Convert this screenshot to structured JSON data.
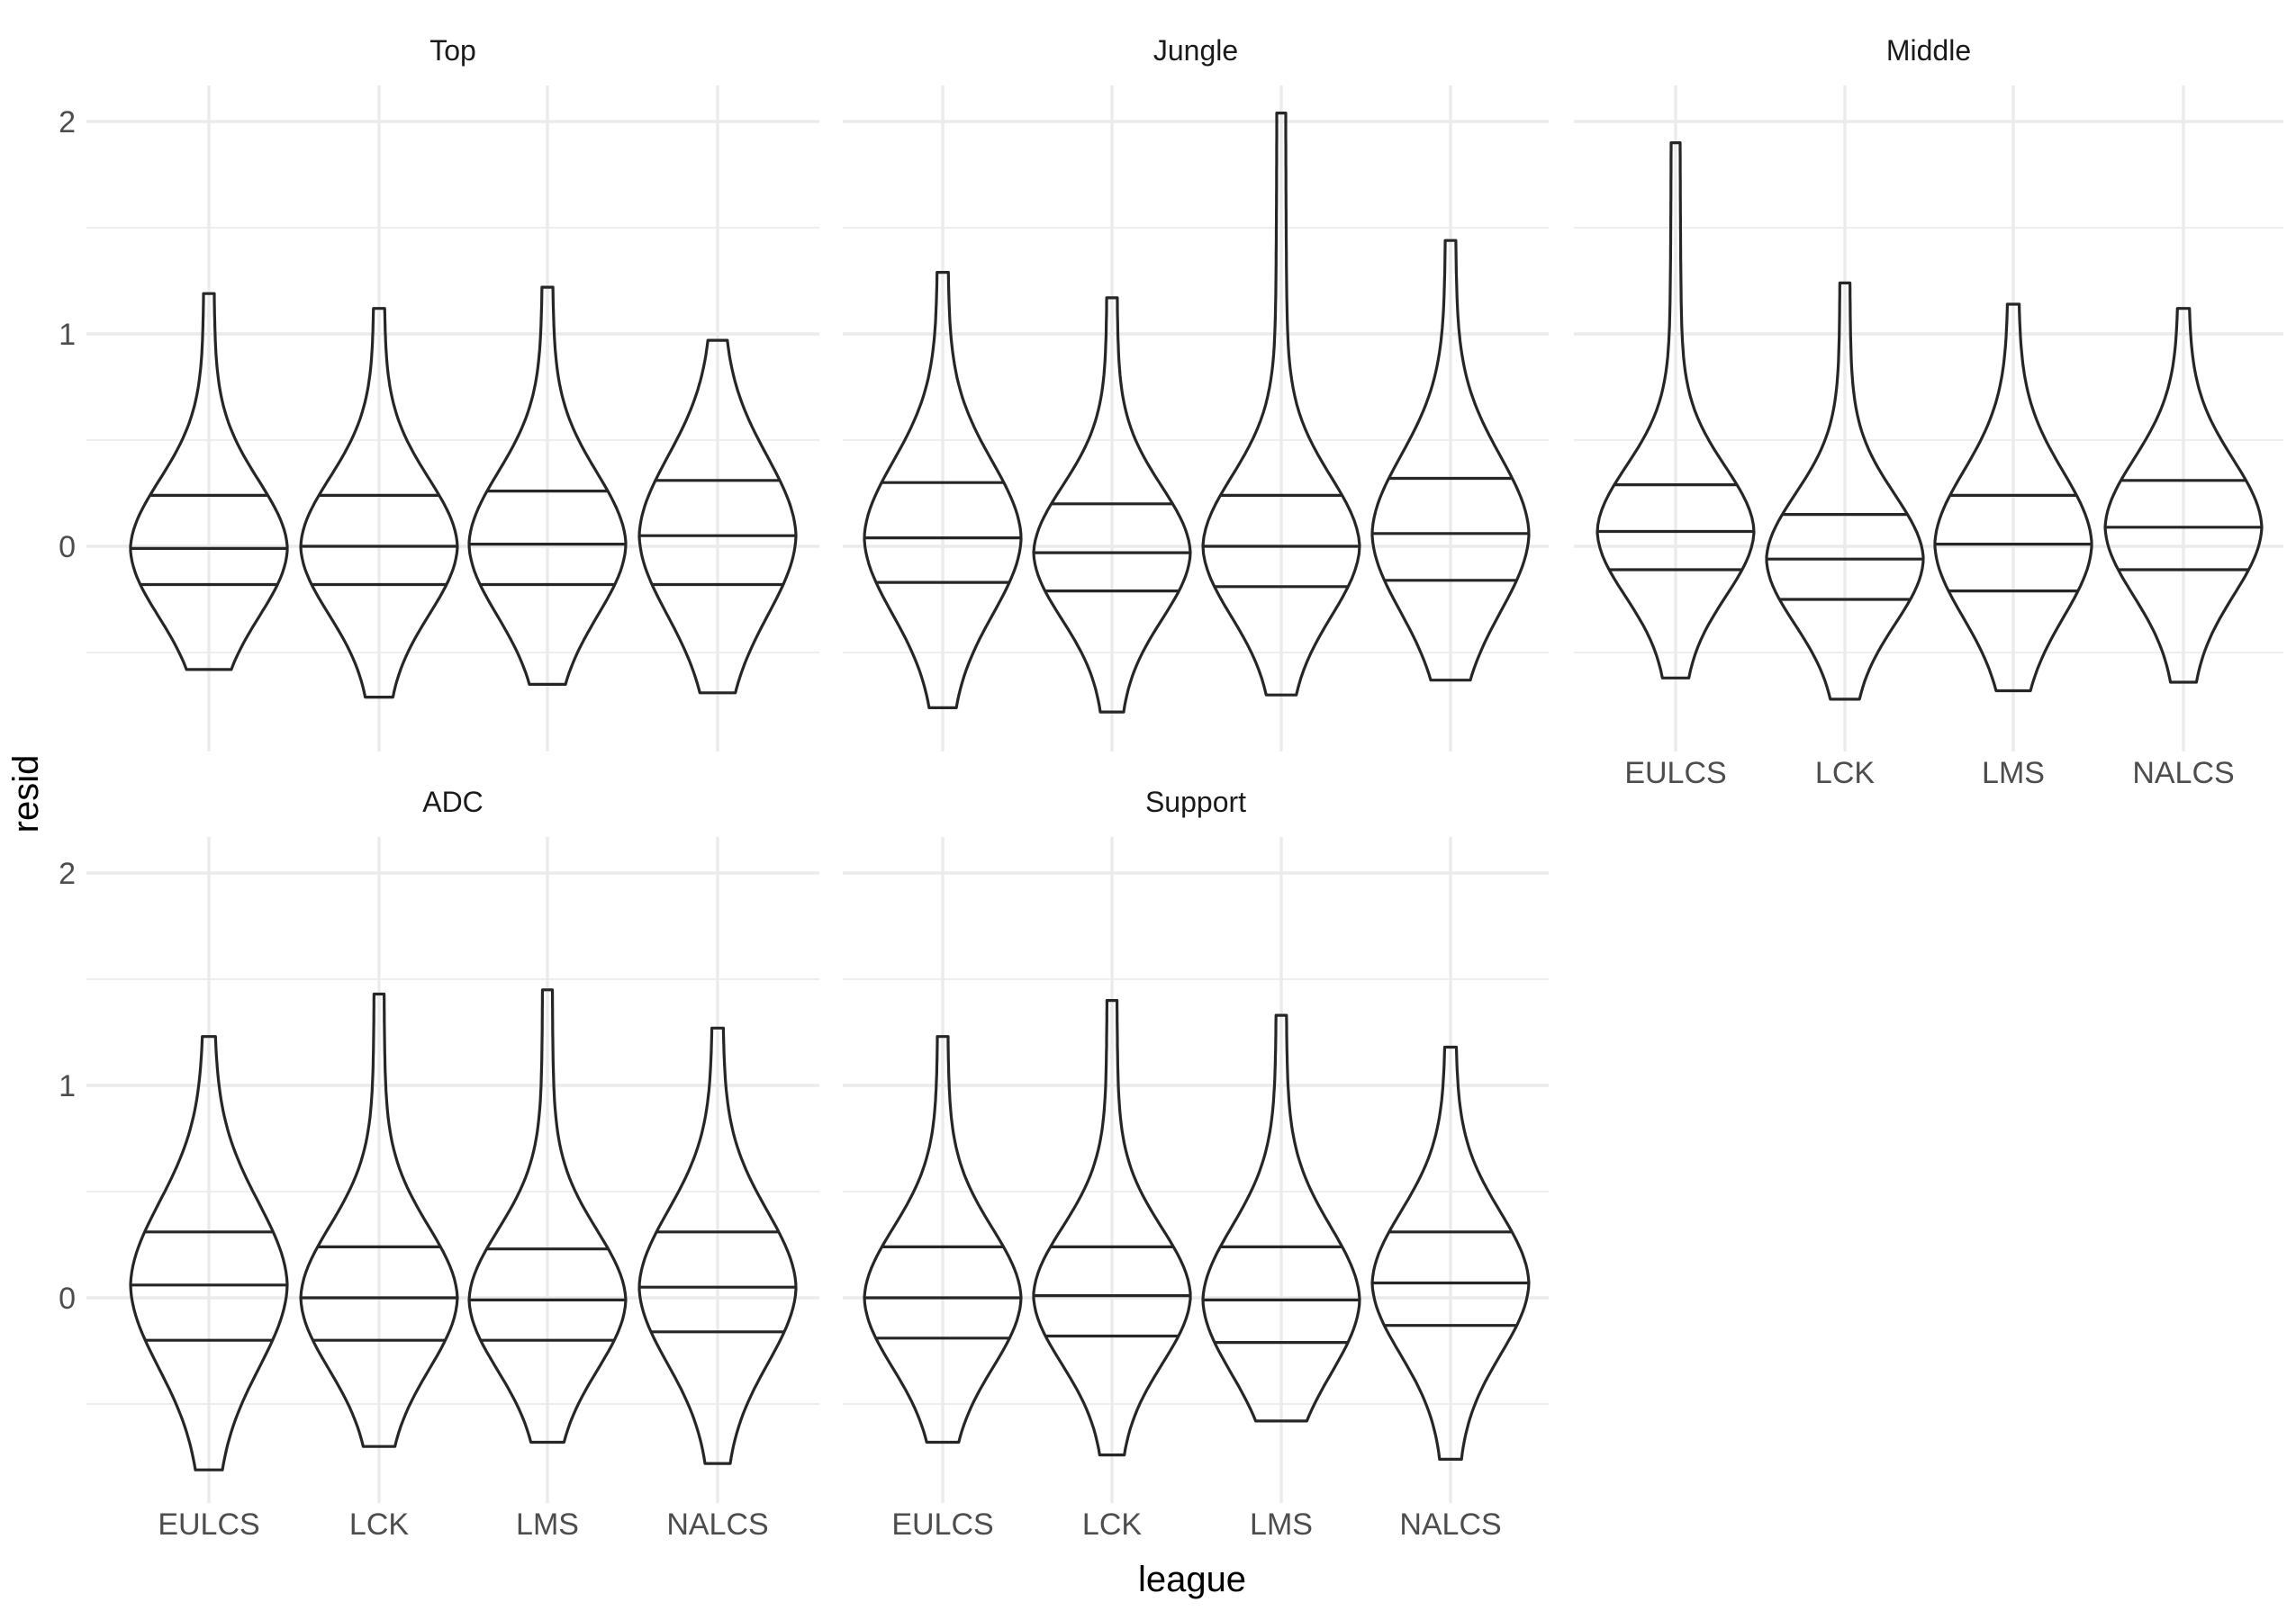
{
  "chart_data": {
    "type": "violin",
    "xlabel": "league",
    "ylabel": "resid",
    "ylim": [
      -0.95,
      2.1
    ],
    "y_ticks": [
      0,
      1,
      2
    ],
    "grid": true,
    "categories": [
      "EULCS",
      "LCK",
      "LMS",
      "NALCS"
    ],
    "facets": [
      {
        "title": "Top",
        "violins": [
          {
            "league": "EULCS",
            "min": -0.58,
            "max": 1.19,
            "q25": -0.18,
            "median": -0.01,
            "q75": 0.24
          },
          {
            "league": "LCK",
            "min": -0.71,
            "max": 1.12,
            "q25": -0.18,
            "median": 0.0,
            "q75": 0.24
          },
          {
            "league": "LMS",
            "min": -0.65,
            "max": 1.22,
            "q25": -0.18,
            "median": 0.01,
            "q75": 0.26
          },
          {
            "league": "NALCS",
            "min": -0.69,
            "max": 0.97,
            "q25": -0.18,
            "median": 0.05,
            "q75": 0.31
          }
        ]
      },
      {
        "title": "Jungle",
        "violins": [
          {
            "league": "EULCS",
            "min": -0.76,
            "max": 1.29,
            "q25": -0.17,
            "median": 0.04,
            "q75": 0.3
          },
          {
            "league": "LCK",
            "min": -0.78,
            "max": 1.17,
            "q25": -0.21,
            "median": -0.03,
            "q75": 0.2
          },
          {
            "league": "LMS",
            "min": -0.7,
            "max": 2.04,
            "q25": -0.19,
            "median": 0.0,
            "q75": 0.24
          },
          {
            "league": "NALCS",
            "min": -0.63,
            "max": 1.44,
            "q25": -0.16,
            "median": 0.06,
            "q75": 0.32
          }
        ]
      },
      {
        "title": "Middle",
        "violins": [
          {
            "league": "EULCS",
            "min": -0.62,
            "max": 1.9,
            "q25": -0.11,
            "median": 0.07,
            "q75": 0.29
          },
          {
            "league": "LCK",
            "min": -0.72,
            "max": 1.24,
            "q25": -0.25,
            "median": -0.06,
            "q75": 0.15
          },
          {
            "league": "LMS",
            "min": -0.68,
            "max": 1.14,
            "q25": -0.21,
            "median": 0.01,
            "q75": 0.24
          },
          {
            "league": "NALCS",
            "min": -0.64,
            "max": 1.12,
            "q25": -0.11,
            "median": 0.09,
            "q75": 0.31
          }
        ]
      },
      {
        "title": "ADC",
        "violins": [
          {
            "league": "EULCS",
            "min": -0.81,
            "max": 1.23,
            "q25": -0.2,
            "median": 0.06,
            "q75": 0.31
          },
          {
            "league": "LCK",
            "min": -0.7,
            "max": 1.43,
            "q25": -0.2,
            "median": 0.0,
            "q75": 0.24
          },
          {
            "league": "LMS",
            "min": -0.68,
            "max": 1.45,
            "q25": -0.2,
            "median": -0.01,
            "q75": 0.23
          },
          {
            "league": "NALCS",
            "min": -0.78,
            "max": 1.27,
            "q25": -0.16,
            "median": 0.05,
            "q75": 0.31
          }
        ]
      },
      {
        "title": "Support",
        "violins": [
          {
            "league": "EULCS",
            "min": -0.68,
            "max": 1.23,
            "q25": -0.19,
            "median": 0.0,
            "q75": 0.24
          },
          {
            "league": "LCK",
            "min": -0.74,
            "max": 1.4,
            "q25": -0.18,
            "median": 0.01,
            "q75": 0.24
          },
          {
            "league": "LMS",
            "min": -0.58,
            "max": 1.33,
            "q25": -0.21,
            "median": -0.01,
            "q75": 0.24
          },
          {
            "league": "NALCS",
            "min": -0.76,
            "max": 1.18,
            "q25": -0.13,
            "median": 0.07,
            "q75": 0.31
          }
        ]
      }
    ]
  }
}
